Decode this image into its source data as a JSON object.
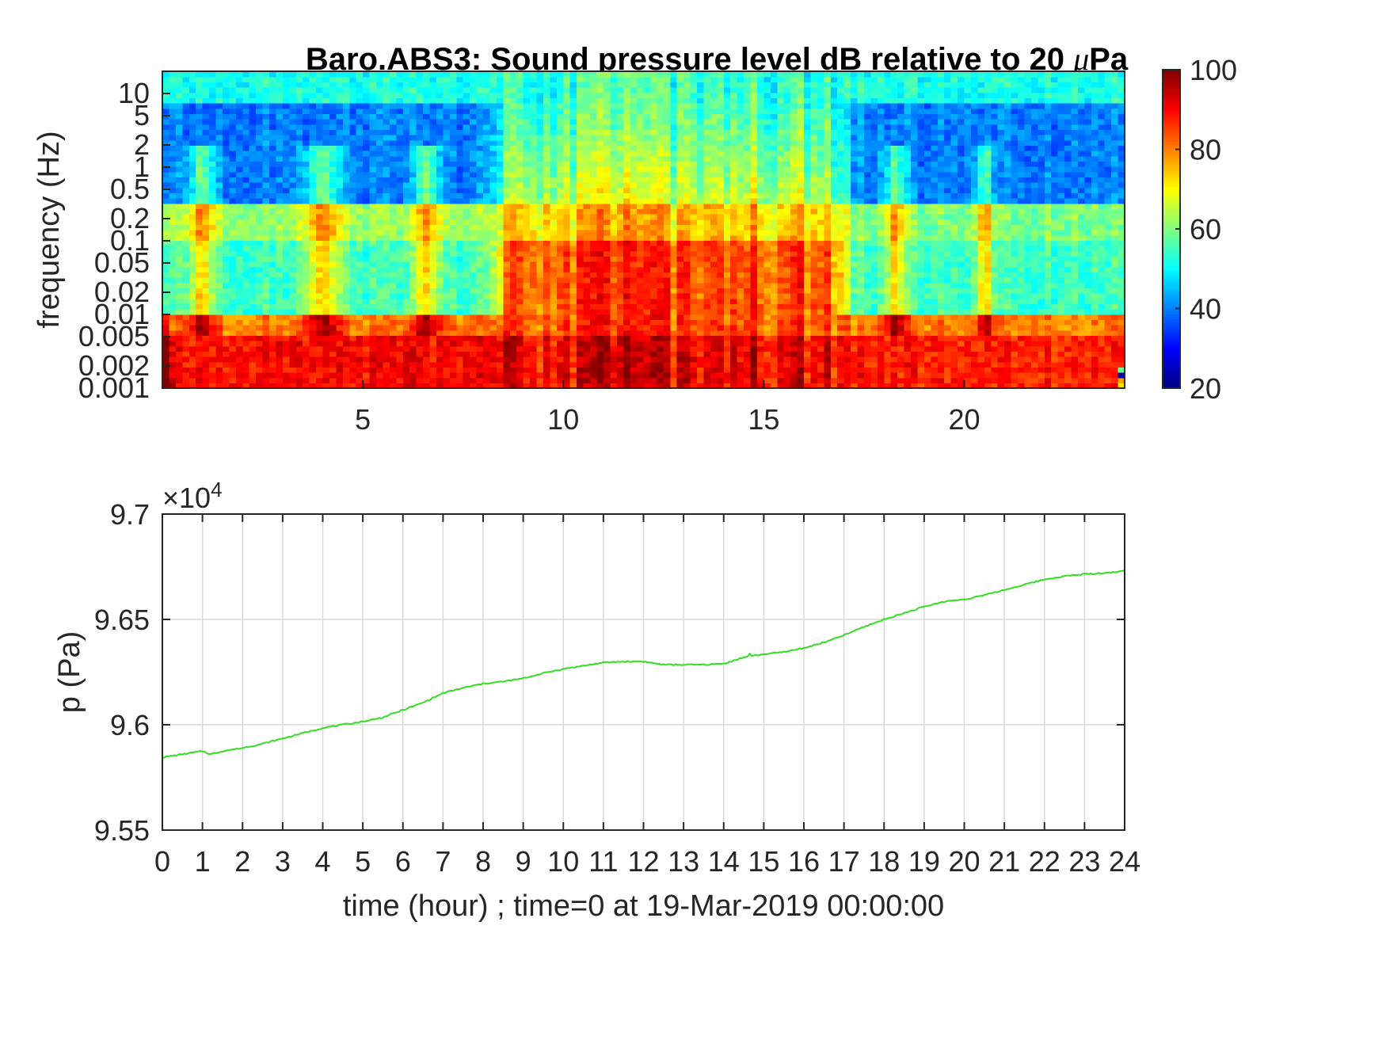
{
  "colors": {
    "pressure_line": "#33dd22",
    "axis": "#262626",
    "grid": "#d9d9d9",
    "colormap": "jet"
  },
  "chart_data": [
    {
      "type": "heatmap",
      "title": "Baro.ABS3: Sound pressure level dB relative to 20 μPa",
      "title_prefix": "Baro.ABS3: Sound pressure level dB relative to 20 ",
      "title_mu": "μ",
      "title_unit": "Pa",
      "xlabel": "",
      "ylabel": "frequency (Hz)",
      "x_scale": "linear",
      "y_scale": "log",
      "xlim": [
        0,
        24
      ],
      "ylim": [
        0.001,
        20
      ],
      "x_ticks": [
        "5",
        "10",
        "15",
        "20"
      ],
      "y_ticks": [
        "0.001",
        "0.002",
        "0.005",
        "0.01",
        "0.02",
        "0.05",
        "0.1",
        "0.2",
        "0.5",
        "1",
        "2",
        "5",
        "10"
      ],
      "colorbar": {
        "colormap": "jet",
        "range": [
          20,
          100
        ],
        "ticks": [
          "20",
          "40",
          "60",
          "80",
          "100"
        ]
      },
      "grid": false,
      "spectral_levels_dB": {
        "quiet_hours_0_to_8": {
          "below_0.005Hz": 90,
          "0.01_to_0.05Hz": 55,
          "0.2Hz_band": 62,
          "0.5_to_5Hz": 40,
          "above_10Hz": 52
        },
        "active_hours_8.5_to_17": {
          "below_0.005Hz": 92,
          "0.01_to_0.05Hz": 85,
          "0.2Hz_band": 75,
          "0.5_to_5Hz": 65,
          "above_10Hz": 55
        },
        "quiet_hours_17_to_24": {
          "below_0.005Hz": 88,
          "0.01_to_0.05Hz": 55,
          "0.2Hz_band": 60,
          "0.5_to_5Hz": 40,
          "above_10Hz": 52
        }
      }
    },
    {
      "type": "line",
      "title": "",
      "xlabel": "time (hour) ; time=0 at 19-Mar-2019 00:00:00",
      "ylabel": "p (Pa)",
      "exponent_base": "×10",
      "exponent_power": "4",
      "xlim": [
        0,
        24
      ],
      "ylim": [
        95500,
        97000
      ],
      "x_ticks": [
        "0",
        "1",
        "2",
        "3",
        "4",
        "5",
        "6",
        "7",
        "8",
        "9",
        "10",
        "11",
        "12",
        "13",
        "14",
        "15",
        "16",
        "17",
        "18",
        "19",
        "20",
        "21",
        "22",
        "23",
        "24"
      ],
      "y_ticks": [
        "9.55",
        "9.6",
        "9.65",
        "9.7"
      ],
      "grid": true,
      "series": [
        {
          "color": "#33dd22",
          "x": [
            0,
            0.5,
            1,
            1.2,
            1.5,
            2,
            2.5,
            3,
            3.5,
            4,
            4.5,
            5,
            5.5,
            6,
            6.5,
            7,
            7.5,
            8,
            8.5,
            9,
            9.5,
            10,
            10.5,
            11,
            11.5,
            12,
            12.5,
            13,
            13.5,
            14,
            14.5,
            15,
            15.5,
            16,
            16.5,
            17,
            17.5,
            18,
            18.5,
            19,
            19.5,
            20,
            20.5,
            21,
            21.5,
            22,
            22.5,
            23,
            23.5,
            24
          ],
          "y": [
            95845,
            95860,
            95875,
            95860,
            95875,
            95890,
            95910,
            95935,
            95960,
            95985,
            96000,
            96015,
            96035,
            96070,
            96105,
            96150,
            96175,
            96195,
            96205,
            96220,
            96245,
            96265,
            96280,
            96295,
            96300,
            96300,
            96285,
            96285,
            96285,
            96290,
            96320,
            96335,
            96345,
            96365,
            96390,
            96425,
            96465,
            96500,
            96530,
            96560,
            96585,
            96595,
            96615,
            96640,
            96665,
            96690,
            96705,
            96715,
            96720,
            96730
          ]
        }
      ]
    }
  ]
}
